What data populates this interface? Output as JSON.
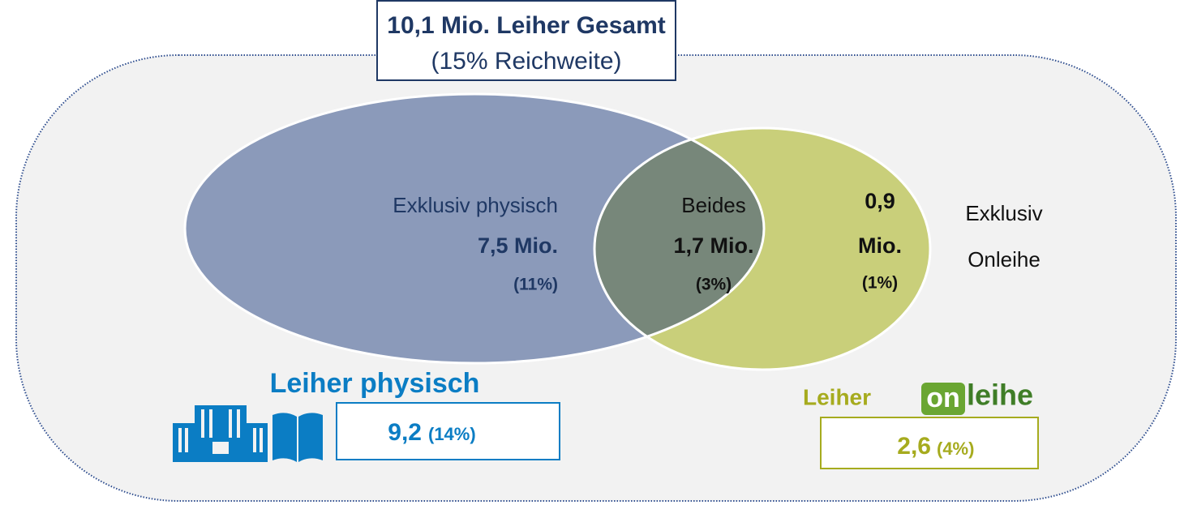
{
  "header": {
    "title": "10,1 Mio. Leiher Gesamt",
    "subtitle": "(15% Reichweite)"
  },
  "regions": {
    "physical_only": {
      "label": "Exklusiv physisch",
      "value": "7,5 Mio.",
      "share": "(11%)"
    },
    "both": {
      "label": "Beides",
      "value": "1,7 Mio.",
      "share": "(3%)"
    },
    "online_only": {
      "value_lines": [
        "0,9",
        "Mio."
      ],
      "share": "(1%)",
      "label_lines": [
        "Exklusiv",
        "Onleihe"
      ]
    }
  },
  "physical_total": {
    "label": "Leiher physisch",
    "value": "9,2",
    "share": "(14%)"
  },
  "online_total": {
    "label": "Leiher",
    "logo": [
      "on",
      "leihe"
    ],
    "value": "2,6",
    "share": "(4%)"
  }
}
